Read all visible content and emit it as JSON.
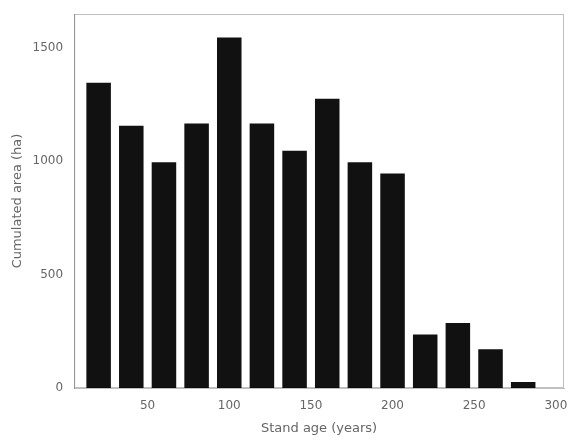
{
  "chart_data": {
    "type": "bar",
    "x": [
      20,
      40,
      60,
      80,
      100,
      120,
      140,
      160,
      180,
      200,
      220,
      240,
      260,
      280
    ],
    "values": [
      1350,
      1160,
      1000,
      1170,
      1550,
      1170,
      1050,
      1280,
      1000,
      950,
      240,
      290,
      175,
      30
    ],
    "color": "#111111",
    "xlabel": "Stand age (years)",
    "ylabel": "Cumulated area (ha)",
    "xlim": [
      5,
      305
    ],
    "ylim": [
      0,
      1650
    ],
    "xticks": [
      50,
      100,
      150,
      200,
      250,
      300
    ],
    "yticks": [
      0,
      500,
      1000,
      1500
    ],
    "grid": false
  }
}
